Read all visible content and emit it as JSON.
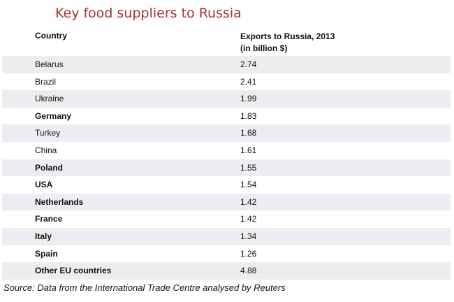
{
  "chart_data": {
    "type": "table",
    "title": "Key food suppliers to Russia",
    "columns": [
      "Country",
      "Exports to Russia, 2013",
      "(in billion $)"
    ],
    "rows": [
      {
        "country": "Belarus",
        "value": "2.74",
        "bold": false
      },
      {
        "country": "Brazil",
        "value": "2.41",
        "bold": false
      },
      {
        "country": "Ukraine",
        "value": "1.99",
        "bold": false
      },
      {
        "country": "Germany",
        "value": "1.83",
        "bold": true
      },
      {
        "country": "Turkey",
        "value": "1.68",
        "bold": false
      },
      {
        "country": "China",
        "value": "1.61",
        "bold": false
      },
      {
        "country": "Poland",
        "value": "1.55",
        "bold": true
      },
      {
        "country": "USA",
        "value": "1.54",
        "bold": true
      },
      {
        "country": "Netherlands",
        "value": "1.42",
        "bold": true
      },
      {
        "country": "France",
        "value": "1.42",
        "bold": true
      },
      {
        "country": "Italy",
        "value": "1.34",
        "bold": true
      },
      {
        "country": "Spain",
        "value": "1.26",
        "bold": true
      },
      {
        "country": "Other EU countries",
        "value": "4.88",
        "bold": true
      }
    ],
    "source": "Source: Data from the International Trade Centre analysed by Reuters"
  },
  "colors": {
    "title": "#a8302d",
    "row_shade": "#ecedf0"
  }
}
